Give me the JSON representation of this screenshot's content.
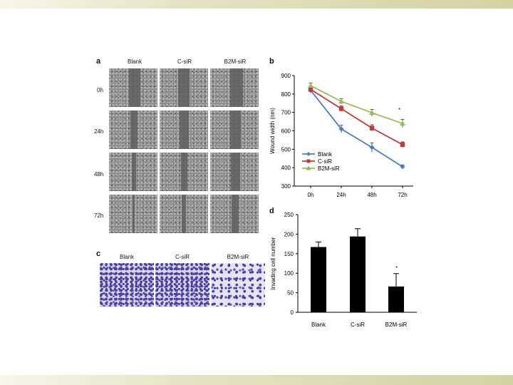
{
  "panels": {
    "a": {
      "letter": "a",
      "columns": [
        "Blank",
        "C-siR",
        "B2M-siR"
      ],
      "rows": [
        "0h",
        "24h",
        "48h",
        "72h"
      ]
    },
    "b": {
      "letter": "b",
      "asterisk": "*"
    },
    "c": {
      "letter": "c",
      "columns": [
        "Blank",
        "C-siR",
        "B2M-siR"
      ]
    },
    "d": {
      "letter": "d",
      "asterisk": "*"
    }
  },
  "chart_data": [
    {
      "type": "line",
      "ylabel": "Wound width (nm)",
      "categories": [
        "0h",
        "24h",
        "48h",
        "72h"
      ],
      "ylim": [
        300,
        900
      ],
      "yticks": [
        300,
        400,
        500,
        600,
        700,
        800,
        900
      ],
      "series": [
        {
          "name": "Blank",
          "color": "#4a7fc1",
          "values": [
            820,
            610,
            510,
            405
          ],
          "errors": [
            15,
            20,
            25,
            10
          ]
        },
        {
          "name": "C-siR",
          "color": "#c0393b",
          "values": [
            825,
            720,
            615,
            525
          ],
          "errors": [
            15,
            15,
            18,
            15
          ]
        },
        {
          "name": "B2M-siR",
          "color": "#9bbb59",
          "values": [
            845,
            760,
            698,
            640
          ],
          "errors": [
            15,
            15,
            18,
            22
          ]
        }
      ],
      "legend": "bottom-left",
      "grid": false
    },
    {
      "type": "bar",
      "ylabel": "Invading cell number",
      "categories": [
        "Blank",
        "C-siR",
        "B2M-siR"
      ],
      "values": [
        167,
        194,
        66
      ],
      "errors": [
        13,
        20,
        33
      ],
      "ylim": [
        0,
        250
      ],
      "yticks": [
        0,
        50,
        100,
        150,
        200,
        250
      ],
      "color": "#000000",
      "grid": false
    }
  ]
}
